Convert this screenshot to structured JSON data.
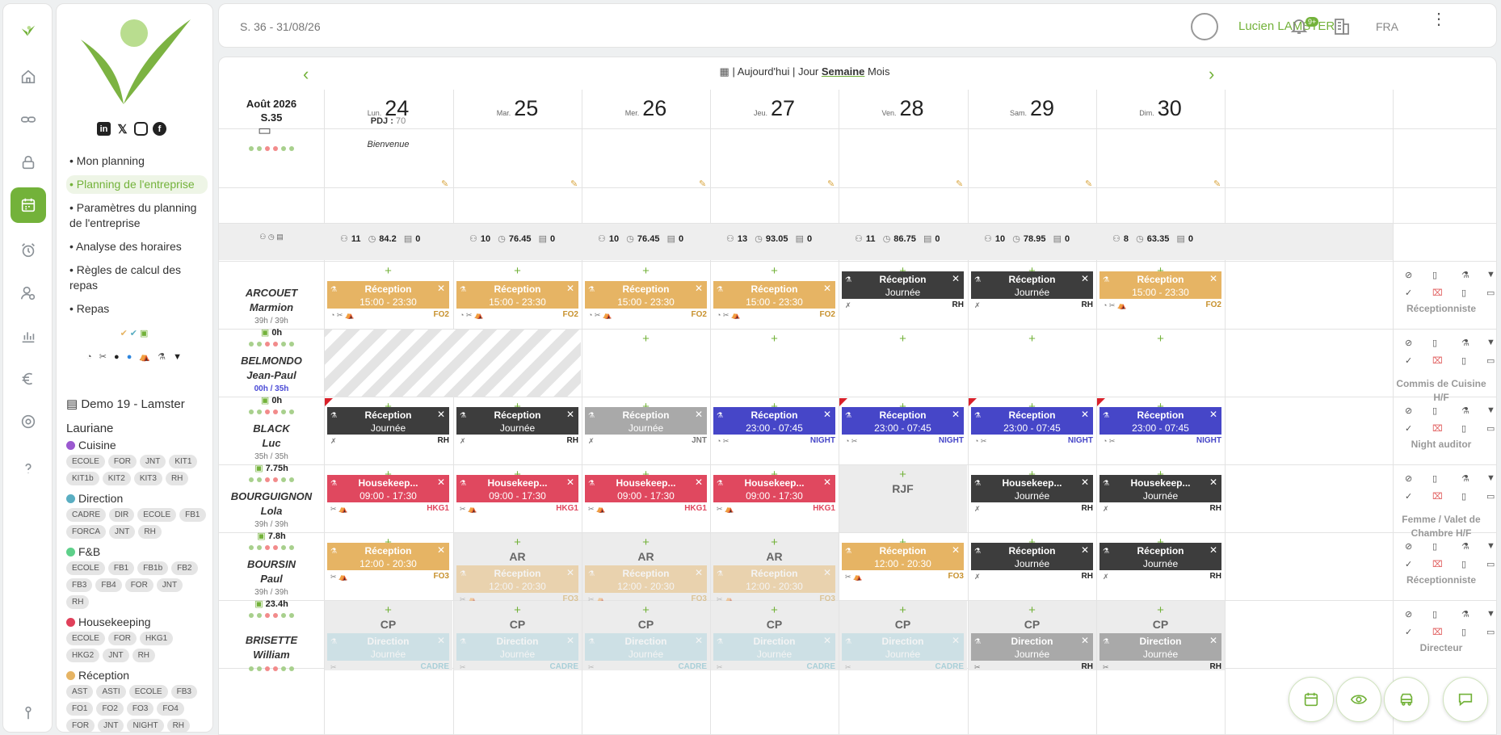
{
  "topbar": {
    "week": "S. 36 - 31/08/26",
    "user": "Lucien LAMSTER",
    "badge": "9+",
    "lang": "FRA"
  },
  "menu": [
    "• Mon planning",
    "• Planning de l'entreprise",
    "• Paramètres du planning de l'entreprise",
    "• Analyse des horaires",
    "• Règles de calcul des repas",
    "• Repas"
  ],
  "company": "Demo 19 - Lamster",
  "user": "Lauriane",
  "departments": [
    {
      "name": "Cuisine",
      "color": "#9b59d0",
      "tags": [
        "ECOLE",
        "FOR",
        "JNT",
        "KIT1",
        "KIT1b",
        "KIT2",
        "KIT3",
        "RH"
      ]
    },
    {
      "name": "Direction",
      "color": "#5aaec2",
      "tags": [
        "CADRE",
        "DIR",
        "ECOLE",
        "FB1",
        "FORCA",
        "JNT",
        "RH"
      ]
    },
    {
      "name": "F&B",
      "color": "#5ed08a",
      "tags": [
        "ECOLE",
        "FB1",
        "FB1b",
        "FB2",
        "FB3",
        "FB4",
        "FOR",
        "JNT",
        "RH"
      ]
    },
    {
      "name": "Housekeeping",
      "color": "#e0405a",
      "tags": [
        "ECOLE",
        "FOR",
        "HKG1",
        "HKG2",
        "JNT",
        "RH"
      ]
    },
    {
      "name": "Réception",
      "color": "#e6b464",
      "tags": [
        "AST",
        "ASTI",
        "ECOLE",
        "FB3",
        "FO1",
        "FO2",
        "FO3",
        "FO4",
        "FOR",
        "JNT",
        "NIGHT",
        "RH"
      ]
    }
  ],
  "nav": {
    "today": "| Aujourd'hui | Jour",
    "week": "Semaine",
    "month": "Mois"
  },
  "weekbox": {
    "month": "Août 2026",
    "week": "S.35"
  },
  "days": [
    {
      "dow": "Lun.",
      "num": "24"
    },
    {
      "dow": "Mar.",
      "num": "25"
    },
    {
      "dow": "Mer.",
      "num": "26"
    },
    {
      "dow": "Jeu.",
      "num": "27"
    },
    {
      "dow": "Ven.",
      "num": "28"
    },
    {
      "dow": "Sam.",
      "num": "29"
    },
    {
      "dow": "Dim.",
      "num": "30"
    }
  ],
  "notes": {
    "pdj_label": "PDJ :",
    "pdj_value": "70",
    "welcome": "Bienvenue"
  },
  "stats": [
    [
      "11",
      "84.2",
      "0"
    ],
    [
      "10",
      "76.45",
      "0"
    ],
    [
      "10",
      "76.45",
      "0"
    ],
    [
      "13",
      "93.05",
      "0"
    ],
    [
      "11",
      "86.75",
      "0"
    ],
    [
      "10",
      "78.95",
      "0"
    ],
    [
      "8",
      "63.35",
      "0"
    ]
  ],
  "employees": [
    {
      "last": "ARCOUET",
      "first": "Marmion",
      "hours": "39h / 39h",
      "total": "0h",
      "role": "Réceptionniste"
    },
    {
      "last": "BELMONDO",
      "first": "Jean-Paul",
      "hours": "00h / 35h",
      "total": "0h",
      "role": "Commis de Cuisine H/F"
    },
    {
      "last": "BLACK",
      "first": "Luc",
      "hours": "35h / 35h",
      "total": "7.75h",
      "role": "Night auditor"
    },
    {
      "last": "BOURGUIGNON",
      "first": "Lola",
      "hours": "39h / 39h",
      "total": "7.8h",
      "role": "Femme / Valet de Chambre H/F"
    },
    {
      "last": "BOURSIN",
      "first": "Paul",
      "hours": "39h / 39h",
      "total": "23.4h",
      "role": "Réceptionniste"
    },
    {
      "last": "BRISETTE",
      "first": "William",
      "hours": "",
      "total": "",
      "role": "Directeur"
    }
  ],
  "shifts": {
    "reception": "Réception",
    "housekeep": "Housekeep...",
    "direction": "Direction",
    "journee": "Journée",
    "t1": "15:00 - 23:30",
    "t2": "23:00 - 07:45",
    "t3": "09:00 - 17:30",
    "t4": "12:00 - 20:30",
    "fo2": "FO2",
    "fo3": "FO3",
    "rh": "RH",
    "jnt": "JNT",
    "night": "NIGHT",
    "hkg1": "HKG1",
    "cadre": "CADRE",
    "rjf": "RJF",
    "ar": "AR",
    "cp": "CP"
  },
  "colors": {
    "accent": "#73b23a",
    "reception": "#e6b464",
    "dark": "#3d3d3d",
    "night": "#4646c8",
    "hkg": "#e0485f",
    "direction": "#a9d3dd"
  }
}
